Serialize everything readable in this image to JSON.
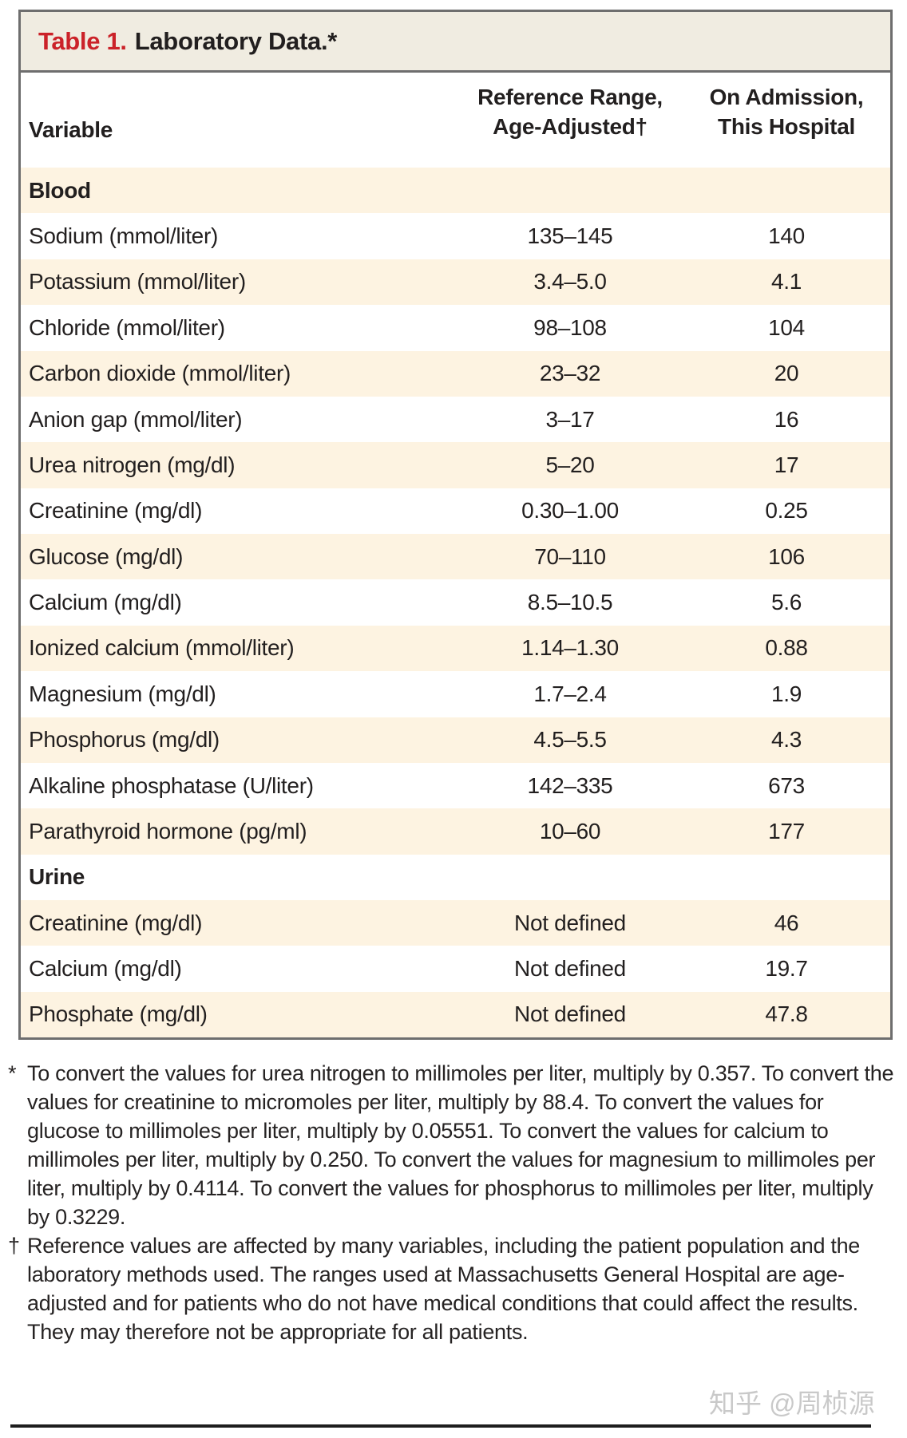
{
  "title": {
    "label": "Table 1.",
    "rest": "Laboratory Data.*"
  },
  "columns": {
    "variable": "Variable",
    "reference_line1": "Reference Range,",
    "reference_line2": "Age-Adjusted†",
    "admission_line1": "On Admission,",
    "admission_line2": "This Hospital"
  },
  "rows": [
    {
      "section": true,
      "label": "Blood"
    },
    {
      "section": false,
      "label": "Sodium (mmol/liter)",
      "reference": "135–145",
      "admission": "140"
    },
    {
      "section": false,
      "label": "Potassium (mmol/liter)",
      "reference": "3.4–5.0",
      "admission": "4.1"
    },
    {
      "section": false,
      "label": "Chloride (mmol/liter)",
      "reference": "98–108",
      "admission": "104"
    },
    {
      "section": false,
      "label": "Carbon dioxide (mmol/liter)",
      "reference": "23–32",
      "admission": "20"
    },
    {
      "section": false,
      "label": "Anion gap (mmol/liter)",
      "reference": "3–17",
      "admission": "16"
    },
    {
      "section": false,
      "label": "Urea nitrogen (mg/dl)",
      "reference": "5–20",
      "admission": "17"
    },
    {
      "section": false,
      "label": "Creatinine (mg/dl)",
      "reference": "0.30–1.00",
      "admission": "0.25"
    },
    {
      "section": false,
      "label": "Glucose (mg/dl)",
      "reference": "70–110",
      "admission": "106"
    },
    {
      "section": false,
      "label": "Calcium (mg/dl)",
      "reference": "8.5–10.5",
      "admission": "5.6"
    },
    {
      "section": false,
      "label": "Ionized calcium (mmol/liter)",
      "reference": "1.14–1.30",
      "admission": "0.88"
    },
    {
      "section": false,
      "label": "Magnesium (mg/dl)",
      "reference": "1.7–2.4",
      "admission": "1.9"
    },
    {
      "section": false,
      "label": "Phosphorus (mg/dl)",
      "reference": "4.5–5.5",
      "admission": "4.3"
    },
    {
      "section": false,
      "label": "Alkaline phosphatase (U/liter)",
      "reference": "142–335",
      "admission": "673"
    },
    {
      "section": false,
      "label": "Parathyroid hormone (pg/ml)",
      "reference": "10–60",
      "admission": "177"
    },
    {
      "section": true,
      "label": "Urine"
    },
    {
      "section": false,
      "label": "Creatinine (mg/dl)",
      "reference": "Not defined",
      "admission": "46"
    },
    {
      "section": false,
      "label": "Calcium (mg/dl)",
      "reference": "Not defined",
      "admission": "19.7"
    },
    {
      "section": false,
      "label": "Phosphate (mg/dl)",
      "reference": "Not defined",
      "admission": "47.8"
    }
  ],
  "footnotes": [
    {
      "marker": "*",
      "text": "To convert the values for urea nitrogen to millimoles per liter, multiply by 0.357. To convert the values for creatinine to micromoles per liter, multiply by 88.4. To convert the values for glucose to millimoles per liter, multiply by 0.05551. To convert the values for calcium to millimoles per liter, multiply by 0.250. To convert the values for magnesium to millimoles per liter, multiply by 0.4114. To convert the values for phosphorus to millimoles per liter, multiply by 0.3229."
    },
    {
      "marker": "†",
      "text": "Reference values are affected by many variables, including the patient population and the laboratory methods used. The ranges used at Massachusetts General Hospital are age-adjusted and for patients who do not have medical conditions that could affect the results. They may therefore not be appropriate for all patients."
    }
  ],
  "watermark": "知乎 @周桢源",
  "colors": {
    "accent_red": "#cb2229",
    "title_bar_bg": "#f0ece1",
    "stripe_cream": "#fdf3e1",
    "frame_border": "#6e6e6e",
    "text": "#221f1f",
    "watermark_gray": "#c9c9c9"
  }
}
